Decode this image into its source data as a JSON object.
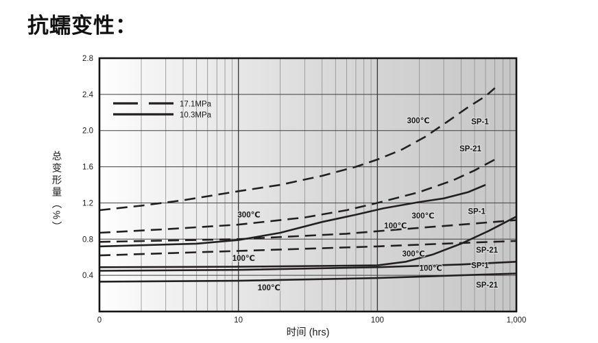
{
  "page_title": "抗蠕变性：",
  "chart_data": {
    "type": "line",
    "title": "抗蠕变性",
    "xlabel": "时间 (hrs)",
    "ylabel": "总变形量（%）",
    "x_scale": "log",
    "xlim": [
      1,
      1000
    ],
    "ylim": [
      0,
      2.8
    ],
    "grid": "log minor vertical gridlines; horizontal gridlines every 0.4",
    "x_ticks": [
      {
        "at": 1,
        "label": "0"
      },
      {
        "at": 10,
        "label": "10"
      },
      {
        "at": 100,
        "label": "100"
      },
      {
        "at": 1000,
        "label": "1,000"
      }
    ],
    "y_ticks": [
      {
        "at": 0.4,
        "label": "0.4"
      },
      {
        "at": 0.8,
        "label": "0.8"
      },
      {
        "at": 1.2,
        "label": "1.2"
      },
      {
        "at": 1.6,
        "label": "1.6"
      },
      {
        "at": 2.0,
        "label": "2.0"
      },
      {
        "at": 2.4,
        "label": "2.4"
      },
      {
        "at": 2.8,
        "label": "2.8"
      }
    ],
    "legend": {
      "position": "top-left",
      "items": [
        {
          "label": "17.1MPa",
          "line": "dashed"
        },
        {
          "label": "10.3MPa",
          "line": "solid"
        }
      ]
    },
    "series": [
      {
        "name": "SP-1 300℃ 17.1MPa",
        "material": "SP-1",
        "temperature": "300℃",
        "pressure": "17.1MPa",
        "line": "dashed",
        "points": [
          [
            1,
            1.12
          ],
          [
            2,
            1.17
          ],
          [
            4,
            1.23
          ],
          [
            10,
            1.33
          ],
          [
            20,
            1.4
          ],
          [
            40,
            1.5
          ],
          [
            70,
            1.6
          ],
          [
            100,
            1.68
          ],
          [
            150,
            1.79
          ],
          [
            220,
            1.93
          ],
          [
            320,
            2.1
          ],
          [
            450,
            2.26
          ],
          [
            600,
            2.38
          ],
          [
            700,
            2.47
          ]
        ]
      },
      {
        "name": "SP-21 300℃ 17.1MPa",
        "material": "SP-21",
        "temperature": "300℃",
        "pressure": "17.1MPa",
        "line": "dashed",
        "points": [
          [
            1,
            0.87
          ],
          [
            3,
            0.91
          ],
          [
            10,
            0.96
          ],
          [
            30,
            1.04
          ],
          [
            60,
            1.12
          ],
          [
            100,
            1.2
          ],
          [
            200,
            1.32
          ],
          [
            350,
            1.45
          ],
          [
            500,
            1.56
          ],
          [
            700,
            1.68
          ]
        ]
      },
      {
        "name": "SP-1 100℃ 17.1MPa",
        "material": "SP-1",
        "temperature": "100℃",
        "pressure": "17.1MPa",
        "line": "dashed",
        "points": [
          [
            1,
            0.77
          ],
          [
            10,
            0.8
          ],
          [
            60,
            0.86
          ],
          [
            150,
            0.91
          ],
          [
            400,
            0.96
          ],
          [
            1000,
            1.01
          ]
        ]
      },
      {
        "name": "SP-21 100℃ 17.1MPa",
        "material": "SP-21",
        "temperature": "100℃",
        "pressure": "17.1MPa",
        "line": "dashed",
        "points": [
          [
            1,
            0.62
          ],
          [
            10,
            0.67
          ],
          [
            100,
            0.72
          ],
          [
            300,
            0.75
          ],
          [
            1000,
            0.78
          ]
        ]
      },
      {
        "name": "SP-1 300℃ 10.3MPa",
        "material": "SP-1",
        "temperature": "300℃",
        "pressure": "10.3MPa",
        "line": "solid",
        "points": [
          [
            1,
            0.72
          ],
          [
            5,
            0.75
          ],
          [
            10,
            0.79
          ],
          [
            20,
            0.87
          ],
          [
            40,
            0.99
          ],
          [
            70,
            1.07
          ],
          [
            110,
            1.14
          ],
          [
            200,
            1.21
          ],
          [
            300,
            1.25
          ],
          [
            450,
            1.32
          ],
          [
            600,
            1.4
          ]
        ]
      },
      {
        "name": "SP-21 300℃ 10.3MPa",
        "material": "SP-21",
        "temperature": "300℃",
        "pressure": "10.3MPa",
        "line": "solid",
        "points": [
          [
            1,
            0.49
          ],
          [
            10,
            0.495
          ],
          [
            100,
            0.51
          ],
          [
            160,
            0.55
          ],
          [
            250,
            0.63
          ],
          [
            400,
            0.75
          ],
          [
            630,
            0.89
          ],
          [
            1000,
            1.05
          ]
        ]
      },
      {
        "name": "SP-1 100℃ 10.3MPa",
        "material": "SP-1",
        "temperature": "100℃",
        "pressure": "10.3MPa",
        "line": "solid",
        "points": [
          [
            1,
            0.45
          ],
          [
            10,
            0.46
          ],
          [
            100,
            0.49
          ],
          [
            400,
            0.52
          ],
          [
            1000,
            0.55
          ]
        ]
      },
      {
        "name": "SP-21 100℃ 10.3MPa",
        "material": "SP-21",
        "temperature": "100℃",
        "pressure": "10.3MPa",
        "line": "solid",
        "points": [
          [
            1,
            0.33
          ],
          [
            10,
            0.34
          ],
          [
            100,
            0.37
          ],
          [
            400,
            0.4
          ],
          [
            1000,
            0.42
          ]
        ]
      }
    ],
    "annotations": [
      {
        "text": "300℃",
        "x": 197,
        "y": 2.11
      },
      {
        "text": "SP-1",
        "x": 547,
        "y": 2.1
      },
      {
        "text": "SP-21",
        "x": 467,
        "y": 1.8
      },
      {
        "text": "300℃",
        "x": 11.9,
        "y": 1.07
      },
      {
        "text": "100℃",
        "x": 135,
        "y": 0.95
      },
      {
        "text": "300℃",
        "x": 213,
        "y": 1.06
      },
      {
        "text": "SP-1",
        "x": 518,
        "y": 1.11
      },
      {
        "text": "SP-21",
        "x": 614,
        "y": 0.68
      },
      {
        "text": "300℃",
        "x": 182,
        "y": 0.64
      },
      {
        "text": "100℃",
        "x": 10.9,
        "y": 0.59
      },
      {
        "text": "100℃",
        "x": 242,
        "y": 0.48
      },
      {
        "text": "SP-1",
        "x": 547,
        "y": 0.51
      },
      {
        "text": "SP-21",
        "x": 614,
        "y": 0.295
      },
      {
        "text": "100℃",
        "x": 16.6,
        "y": 0.265
      }
    ],
    "colors": {
      "curve": "#231f1f",
      "grid_minor": "#8c8c8c",
      "grid_major": "#3c3c3c",
      "border": "#141414",
      "text": "#1a1a1a",
      "plot_bg_left": "#ffffff",
      "plot_bg_right": "#c6c6c6"
    }
  }
}
